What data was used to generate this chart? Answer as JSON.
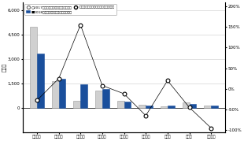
{
  "categories": [
    "大阪市圏",
    "大阪府下",
    "神戸市圏",
    "兵庫県下",
    "京都市圏",
    "京都府下",
    "奈良県",
    "滋賀県",
    "和歌山県"
  ],
  "values_2017": [
    5000,
    1650,
    450,
    1050,
    430,
    170,
    70,
    330,
    160
  ],
  "values_2018": [
    3350,
    1800,
    1450,
    1150,
    380,
    120,
    120,
    230,
    140
  ],
  "growth_rate": [
    -28,
    25,
    155,
    8,
    -12,
    -65,
    20,
    -45,
    -95
  ],
  "bar_color_2017": "#d0d0d0",
  "bar_color_2018": "#1a4f9c",
  "ylabel_left": "〈戸〉",
  "ylim_left": [
    -1500,
    6500
  ],
  "ylim_right": [
    -105,
    210
  ],
  "yticks_left": [
    0,
    1500,
    3000,
    4500,
    6000
  ],
  "yticks_right": [
    -100,
    -50,
    0,
    50,
    100,
    150,
    200
  ],
  "legend_line1": "○2017年度上期供給戸数（戸）：左軸",
  "legend_line2": "■2018年度上期供給戸数（戸）：左軸",
  "legend_line3": "○新規戸数対前年同期比増減率：右軸",
  "background_color": "#ffffff"
}
